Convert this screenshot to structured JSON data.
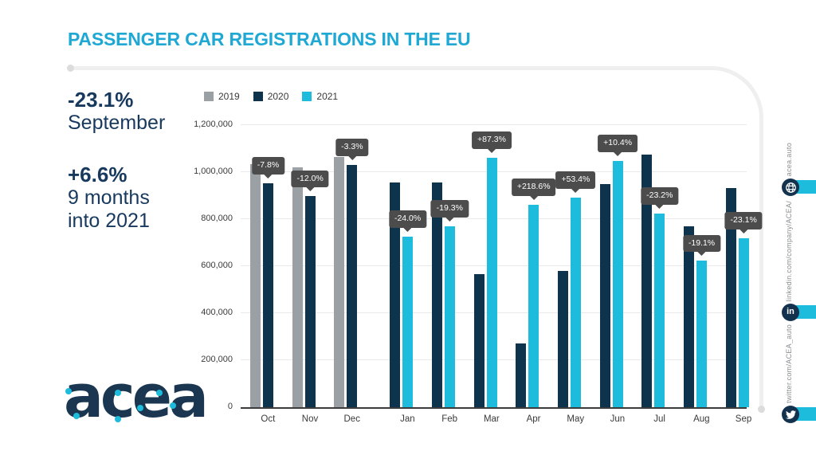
{
  "title": "PASSENGER CAR REGISTRATIONS IN THE EU",
  "stats": {
    "block1_value": "-23.1%",
    "block1_label": "September",
    "block2_value": "+6.6%",
    "block2_label_line1": "9 months",
    "block2_label_line2": "into 2021"
  },
  "logo": {
    "text": "acea"
  },
  "social": {
    "items": [
      {
        "label": "acea.auto",
        "icon": "globe-icon"
      },
      {
        "label": "linkedin.com/company/ACEA/",
        "icon": "linkedin-icon"
      },
      {
        "label": "twitter.com/ACEA_auto",
        "icon": "twitter-icon"
      }
    ]
  },
  "colors": {
    "title_cyan": "#1fa8d4",
    "accent_cyan": "#1dbcdc",
    "navy": "#0e334d",
    "gray_2019": "#9aa0a4",
    "tooltip_bg": "#4c4c4c",
    "text_navy": "#17395e"
  },
  "chart_data": {
    "type": "bar",
    "categories": [
      "Oct",
      "Nov",
      "Dec",
      "Jan",
      "Feb",
      "Mar",
      "Apr",
      "May",
      "Jun",
      "Jul",
      "Aug",
      "Sep"
    ],
    "series": [
      {
        "name": "2019",
        "color": "#9aa0a4",
        "values": [
          1035000,
          1021000,
          1066000,
          null,
          null,
          null,
          null,
          null,
          null,
          null,
          null,
          null
        ]
      },
      {
        "name": "2020",
        "color": "#0e334d",
        "values": [
          954000,
          898000,
          1031000,
          956000,
          956000,
          567000,
          271000,
          581000,
          950000,
          1073000,
          770000,
          933000
        ]
      },
      {
        "name": "2021",
        "color": "#1dbcdc",
        "values": [
          null,
          null,
          null,
          727000,
          771000,
          1062000,
          862000,
          892000,
          1049000,
          824000,
          623000,
          719000
        ]
      }
    ],
    "change_labels": [
      "-7.8%",
      "-12.0%",
      "-3.3%",
      "-24.0%",
      "-19.3%",
      "+87.3%",
      "+218.6%",
      "+53.4%",
      "+10.4%",
      "-23.2%",
      "-19.1%",
      "-23.1%"
    ],
    "ylim": [
      0,
      1200000
    ],
    "ytick_step": 200000,
    "yticks": [
      "0",
      "200,000",
      "400,000",
      "600,000",
      "800,000",
      "1,000,000",
      "1,200,000"
    ],
    "grid": "horizontal",
    "legend_position": "top-left"
  }
}
